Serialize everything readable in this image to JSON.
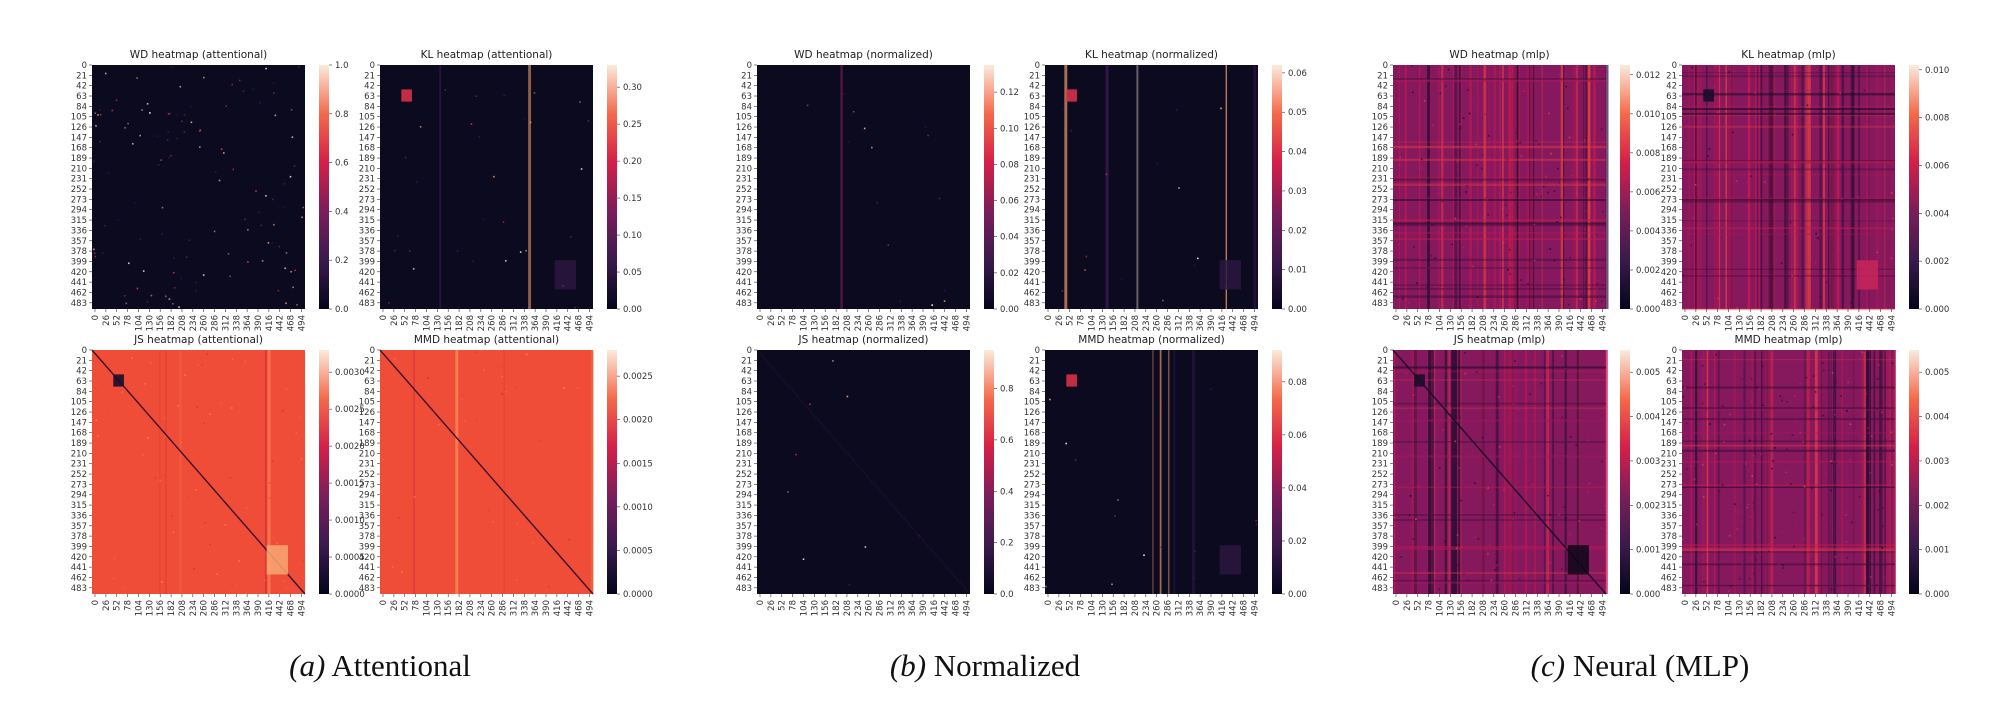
{
  "figure": {
    "captions": [
      {
        "tag": "(a)",
        "text": "Attentional"
      },
      {
        "tag": "(b)",
        "text": "Normalized"
      },
      {
        "tag": "(c)",
        "text": "Neural (MLP)"
      }
    ]
  },
  "chart_data": [
    {
      "type": "heatmap",
      "title": "WD heatmap (attentional)",
      "scheme": "dark",
      "background": 0.03,
      "speckle": 0.04,
      "diagonal": 0,
      "stripes": 0,
      "block": false,
      "colorbar": {
        "ticks": [
          "0.0",
          "0.2",
          "0.4",
          "0.6",
          "0.8",
          "1.0"
        ],
        "range": [
          0,
          1.0
        ]
      }
    },
    {
      "type": "heatmap",
      "title": "KL heatmap (attentional)",
      "scheme": "dark",
      "background": 0.03,
      "speckle": 0.01,
      "diagonal": 0,
      "stripes": 0.02,
      "block": true,
      "colorbar": {
        "ticks": [
          "0.00",
          "0.05",
          "0.10",
          "0.15",
          "0.20",
          "0.25",
          "0.30"
        ],
        "range": [
          0,
          0.33
        ]
      }
    },
    {
      "type": "heatmap",
      "title": "JS heatmap (attentional)",
      "scheme": "orange",
      "background": 0.75,
      "speckle": 0.02,
      "diagonal": 1,
      "stripes": 0.05,
      "block": true,
      "colorbar": {
        "ticks": [
          "0.0000",
          "0.0005",
          "0.0010",
          "0.0015",
          "0.0020",
          "0.0025",
          "0.0030"
        ],
        "range": [
          0,
          0.0033
        ]
      }
    },
    {
      "type": "heatmap",
      "title": "MMD heatmap (attentional)",
      "scheme": "orange",
      "background": 0.77,
      "speckle": 0.01,
      "diagonal": 1,
      "stripes": 0.04,
      "block": false,
      "colorbar": {
        "ticks": [
          "0.0000",
          "0.0005",
          "0.0010",
          "0.0015",
          "0.0020",
          "0.0025"
        ],
        "range": [
          0,
          0.0028
        ]
      }
    },
    {
      "type": "heatmap",
      "title": "WD heatmap (normalized)",
      "scheme": "dark",
      "background": 0.03,
      "speckle": 0.005,
      "diagonal": 0,
      "stripes": 0.01,
      "block": false,
      "colorbar": {
        "ticks": [
          "0.00",
          "0.02",
          "0.04",
          "0.06",
          "0.08",
          "0.10",
          "0.12"
        ],
        "range": [
          0,
          0.135
        ]
      }
    },
    {
      "type": "heatmap",
      "title": "KL heatmap (normalized)",
      "scheme": "dark",
      "background": 0.04,
      "speckle": 0.005,
      "diagonal": 0,
      "stripes": 0.06,
      "block": true,
      "colorbar": {
        "ticks": [
          "0.00",
          "0.01",
          "0.02",
          "0.03",
          "0.04",
          "0.05",
          "0.06"
        ],
        "range": [
          0,
          0.062
        ]
      }
    },
    {
      "type": "heatmap",
      "title": "JS heatmap (normalized)",
      "scheme": "dark",
      "background": 0.03,
      "speckle": 0.003,
      "diagonal": 0.3,
      "stripes": 0,
      "block": false,
      "colorbar": {
        "ticks": [
          "0.0",
          "0.2",
          "0.4",
          "0.6",
          "0.8"
        ],
        "range": [
          0,
          0.95
        ]
      }
    },
    {
      "type": "heatmap",
      "title": "MMD heatmap (normalized)",
      "scheme": "dark",
      "background": 0.04,
      "speckle": 0.005,
      "diagonal": 0,
      "stripes": 0.05,
      "block": true,
      "colorbar": {
        "ticks": [
          "0.00",
          "0.02",
          "0.04",
          "0.06",
          "0.08"
        ],
        "range": [
          0,
          0.092
        ]
      }
    },
    {
      "type": "heatmap",
      "title": "WD heatmap (mlp)",
      "scheme": "magenta",
      "background": 0.35,
      "speckle": 0.05,
      "diagonal": 0,
      "stripes": 0.5,
      "block": false,
      "colorbar": {
        "ticks": [
          "0.000",
          "0.002",
          "0.004",
          "0.006",
          "0.008",
          "0.010",
          "0.012"
        ],
        "range": [
          0,
          0.0125
        ]
      }
    },
    {
      "type": "heatmap",
      "title": "KL heatmap (mlp)",
      "scheme": "magenta",
      "background": 0.3,
      "speckle": 0.02,
      "diagonal": 0,
      "stripes": 0.6,
      "block": true,
      "colorbar": {
        "ticks": [
          "0.000",
          "0.002",
          "0.004",
          "0.006",
          "0.008",
          "0.010"
        ],
        "range": [
          0,
          0.0102
        ]
      }
    },
    {
      "type": "heatmap",
      "title": "JS heatmap (mlp)",
      "scheme": "magenta",
      "background": 0.55,
      "speckle": 0.03,
      "diagonal": 1,
      "stripes": 0.4,
      "block": true,
      "colorbar": {
        "ticks": [
          "0.000",
          "0.001",
          "0.002",
          "0.003",
          "0.004",
          "0.005"
        ],
        "range": [
          0,
          0.0055
        ]
      }
    },
    {
      "type": "heatmap",
      "title": "MMD heatmap (mlp)",
      "scheme": "magenta",
      "background": 0.45,
      "speckle": 0.06,
      "diagonal": 0,
      "stripes": 0.5,
      "block": false,
      "colorbar": {
        "ticks": [
          "0.000",
          "0.001",
          "0.002",
          "0.003",
          "0.004",
          "0.005"
        ],
        "range": [
          0,
          0.0055
        ]
      }
    }
  ],
  "axes": {
    "y_ticks": [
      "0",
      "21",
      "42",
      "63",
      "84",
      "105",
      "126",
      "147",
      "168",
      "189",
      "210",
      "231",
      "252",
      "273",
      "294",
      "315",
      "336",
      "357",
      "378",
      "399",
      "420",
      "441",
      "462",
      "483"
    ],
    "x_ticks": [
      "0",
      "26",
      "52",
      "78",
      "104",
      "130",
      "156",
      "182",
      "208",
      "234",
      "260",
      "286",
      "312",
      "338",
      "364",
      "390",
      "416",
      "442",
      "468",
      "494"
    ]
  }
}
